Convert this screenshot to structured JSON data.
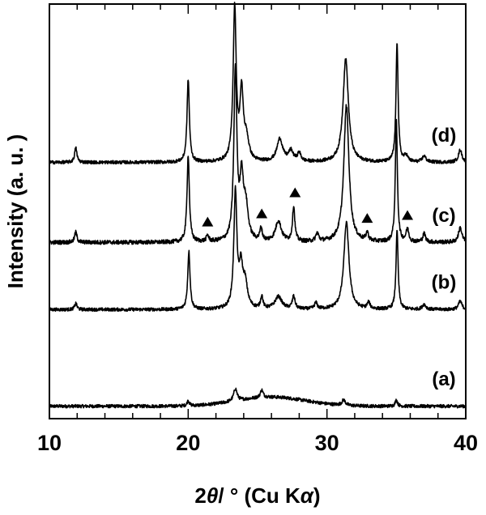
{
  "chart_data": {
    "type": "line",
    "xlabel_prefix": "2",
    "xlabel_theta": "θ",
    "xlabel_mid": "/ ° (Cu K",
    "xlabel_alpha": "α",
    "xlabel_suffix": ")",
    "ylabel": "Intensity (a. u. )",
    "xlim": [
      10,
      40
    ],
    "xticks": [
      10,
      20,
      30,
      40
    ],
    "xticks_minor_step": 2,
    "y_ticks_shown": false,
    "series": [
      {
        "name": "(a)",
        "baseline": 0.03,
        "noise": 0.004,
        "hump": {
          "center": 26,
          "width": 3.5,
          "height": 0.022
        },
        "peaks": [
          {
            "x": 20.0,
            "h": 0.012,
            "w": 0.1
          },
          {
            "x": 23.4,
            "h": 0.03,
            "w": 0.15
          },
          {
            "x": 25.3,
            "h": 0.018,
            "w": 0.12
          },
          {
            "x": 31.2,
            "h": 0.013,
            "w": 0.15
          },
          {
            "x": 35.0,
            "h": 0.015,
            "w": 0.1
          }
        ]
      },
      {
        "name": "(b)",
        "baseline": 0.263,
        "noise": 0.004,
        "peaks": [
          {
            "x": 11.9,
            "h": 0.015,
            "w": 0.1
          },
          {
            "x": 20.05,
            "h": 0.14,
            "w": 0.1
          },
          {
            "x": 23.4,
            "h": 0.28,
            "w": 0.13
          },
          {
            "x": 23.8,
            "h": 0.09,
            "w": 0.15
          },
          {
            "x": 24.1,
            "h": 0.06,
            "w": 0.2
          },
          {
            "x": 25.3,
            "h": 0.03,
            "w": 0.1
          },
          {
            "x": 26.5,
            "h": 0.03,
            "w": 0.3
          },
          {
            "x": 27.6,
            "h": 0.03,
            "w": 0.12
          },
          {
            "x": 29.2,
            "h": 0.015,
            "w": 0.12
          },
          {
            "x": 31.4,
            "h": 0.21,
            "w": 0.22
          },
          {
            "x": 33.0,
            "h": 0.015,
            "w": 0.12
          },
          {
            "x": 35.05,
            "h": 0.19,
            "w": 0.09
          },
          {
            "x": 37.0,
            "h": 0.012,
            "w": 0.15
          },
          {
            "x": 39.6,
            "h": 0.02,
            "w": 0.15
          }
        ]
      },
      {
        "name": "(c)",
        "baseline": 0.425,
        "noise": 0.005,
        "peaks": [
          {
            "x": 11.9,
            "h": 0.025,
            "w": 0.1
          },
          {
            "x": 20.0,
            "h": 0.21,
            "w": 0.1
          },
          {
            "x": 21.4,
            "h": 0.015,
            "w": 0.1
          },
          {
            "x": 23.4,
            "h": 0.41,
            "w": 0.13
          },
          {
            "x": 23.85,
            "h": 0.14,
            "w": 0.15
          },
          {
            "x": 24.15,
            "h": 0.08,
            "w": 0.2
          },
          {
            "x": 25.25,
            "h": 0.03,
            "w": 0.1
          },
          {
            "x": 26.5,
            "h": 0.05,
            "w": 0.25
          },
          {
            "x": 27.6,
            "h": 0.085,
            "w": 0.1
          },
          {
            "x": 29.3,
            "h": 0.02,
            "w": 0.12
          },
          {
            "x": 31.4,
            "h": 0.33,
            "w": 0.22
          },
          {
            "x": 32.9,
            "h": 0.02,
            "w": 0.1
          },
          {
            "x": 35.0,
            "h": 0.29,
            "w": 0.09
          },
          {
            "x": 35.8,
            "h": 0.03,
            "w": 0.12
          },
          {
            "x": 37.0,
            "h": 0.02,
            "w": 0.12
          },
          {
            "x": 39.6,
            "h": 0.035,
            "w": 0.15
          }
        ]
      },
      {
        "name": "(d)",
        "baseline": 0.618,
        "noise": 0.004,
        "peaks": [
          {
            "x": 11.9,
            "h": 0.035,
            "w": 0.1
          },
          {
            "x": 20.0,
            "h": 0.2,
            "w": 0.1
          },
          {
            "x": 23.35,
            "h": 0.37,
            "w": 0.13
          },
          {
            "x": 23.85,
            "h": 0.16,
            "w": 0.15
          },
          {
            "x": 24.2,
            "h": 0.05,
            "w": 0.2
          },
          {
            "x": 26.6,
            "h": 0.055,
            "w": 0.25
          },
          {
            "x": 27.4,
            "h": 0.025,
            "w": 0.2
          },
          {
            "x": 28.0,
            "h": 0.02,
            "w": 0.15
          },
          {
            "x": 31.35,
            "h": 0.25,
            "w": 0.23
          },
          {
            "x": 35.05,
            "h": 0.29,
            "w": 0.09
          },
          {
            "x": 35.7,
            "h": 0.015,
            "w": 0.15
          },
          {
            "x": 37.0,
            "h": 0.015,
            "w": 0.15
          },
          {
            "x": 39.6,
            "h": 0.03,
            "w": 0.15
          }
        ]
      }
    ],
    "annotations": {
      "marker": "▲",
      "series": "(c)",
      "x": [
        21.4,
        25.3,
        27.7,
        32.9,
        35.8
      ]
    }
  }
}
